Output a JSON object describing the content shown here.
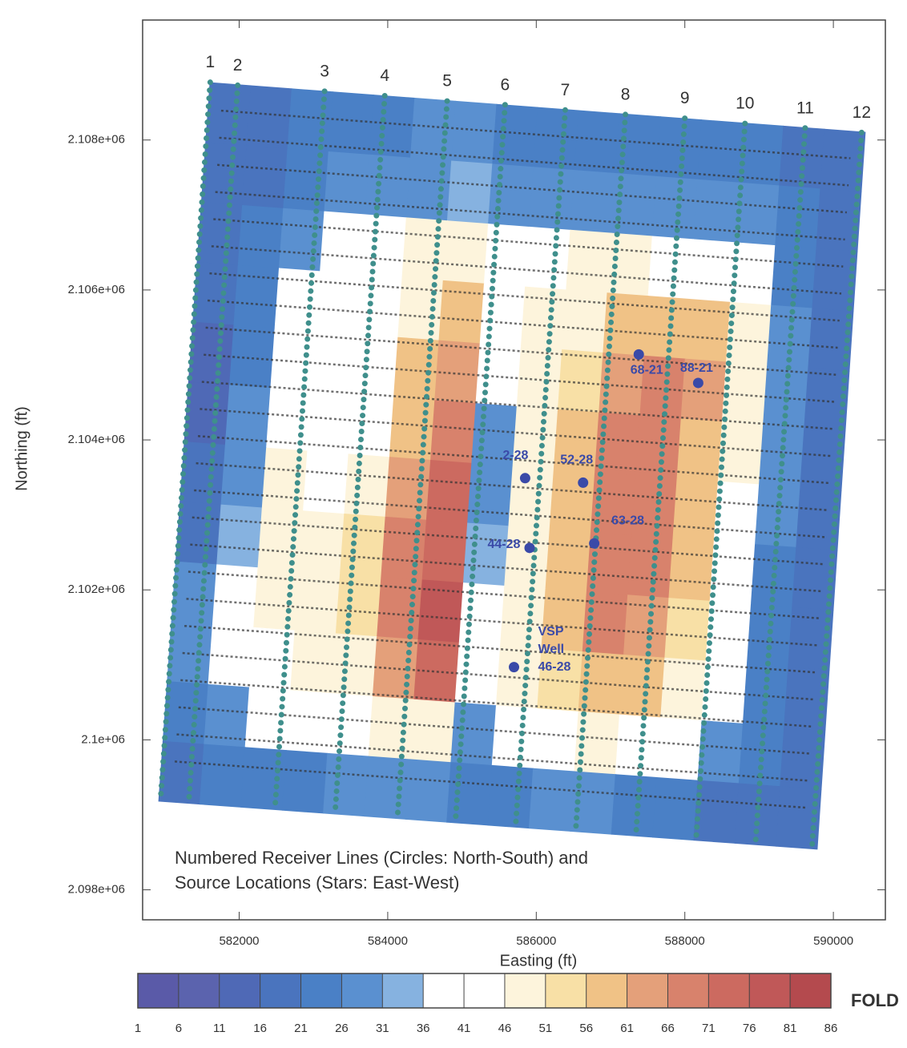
{
  "chart_data": {
    "type": "heatmap",
    "xlabel": "Easting (ft)",
    "ylabel": "Northing (ft)",
    "xlim": [
      580700,
      590700
    ],
    "ylim": [
      2097600,
      2109600
    ],
    "xticks": [
      582000,
      584000,
      586000,
      588000,
      590000
    ],
    "yticks": [
      {
        "value": 2098000,
        "label": "2.098e+06"
      },
      {
        "value": 2100000,
        "label": "2.1e+06"
      },
      {
        "value": 2102000,
        "label": "2.102e+06"
      },
      {
        "value": 2104000,
        "label": "2.104e+06"
      },
      {
        "value": 2106000,
        "label": "2.106e+06"
      },
      {
        "value": 2108000,
        "label": "2.108e+06"
      }
    ],
    "annotation": [
      "Numbered Receiver Lines (Circles: North-South) and",
      "Source Locations (Stars: East-West)"
    ],
    "line_color": "#3f8f8c",
    "receiver_lines": [
      {
        "label": "1",
        "north": [
          581610,
          2108770
        ],
        "south": [
          580940,
          2099180
        ]
      },
      {
        "label": "2",
        "north": [
          581980,
          2108730
        ],
        "south": [
          581320,
          2099150
        ]
      },
      {
        "label": "3",
        "north": [
          583150,
          2108650
        ],
        "south": [
          582480,
          2099060
        ]
      },
      {
        "label": "4",
        "north": [
          583960,
          2108590
        ],
        "south": [
          583290,
          2099010
        ]
      },
      {
        "label": "5",
        "north": [
          584800,
          2108520
        ],
        "south": [
          584130,
          2098950
        ]
      },
      {
        "label": "6",
        "north": [
          585580,
          2108470
        ],
        "south": [
          584910,
          2098890
        ]
      },
      {
        "label": "7",
        "north": [
          586390,
          2108400
        ],
        "south": [
          585720,
          2098830
        ]
      },
      {
        "label": "8",
        "north": [
          587200,
          2108340
        ],
        "south": [
          586530,
          2098780
        ]
      },
      {
        "label": "9",
        "north": [
          588000,
          2108290
        ],
        "south": [
          587340,
          2098710
        ]
      },
      {
        "label": "10",
        "north": [
          588810,
          2108220
        ],
        "south": [
          588150,
          2098660
        ]
      },
      {
        "label": "11",
        "north": [
          589620,
          2108160
        ],
        "south": [
          588950,
          2098600
        ]
      },
      {
        "label": "12",
        "north": [
          590380,
          2108100
        ],
        "south": [
          589710,
          2098540
        ]
      }
    ],
    "well_color": "#3a4aa8",
    "wells": [
      {
        "label_lines": [
          "68-21"
        ],
        "x": 587380,
        "y": 2105140
      },
      {
        "label_lines": [
          "88-21"
        ],
        "x": 588180,
        "y": 2104760
      },
      {
        "label_lines": [
          "2-28"
        ],
        "x": 585850,
        "y": 2103490
      },
      {
        "label_lines": [
          "52-28"
        ],
        "x": 586630,
        "y": 2103430
      },
      {
        "label_lines": [
          "63-28"
        ],
        "x": 586780,
        "y": 2102620
      },
      {
        "label_lines": [
          "44-28"
        ],
        "x": 585910,
        "y": 2102560
      },
      {
        "label_lines": [
          "VSP",
          "Well",
          "46-28"
        ],
        "x": 585700,
        "y": 2100970
      }
    ],
    "fold": [
      [
        18,
        20,
        22,
        24,
        25,
        26,
        26,
        25,
        24,
        24,
        24,
        24,
        23,
        22,
        20,
        18
      ],
      [
        18,
        20,
        22,
        26,
        28,
        30,
        34,
        30,
        26,
        28,
        28,
        28,
        26,
        26,
        22,
        18
      ],
      [
        16,
        22,
        26,
        40,
        38,
        46,
        50,
        44,
        42,
        46,
        46,
        44,
        44,
        42,
        24,
        18
      ],
      [
        16,
        24,
        36,
        44,
        42,
        50,
        56,
        44,
        46,
        50,
        56,
        58,
        56,
        46,
        26,
        18
      ],
      [
        14,
        24,
        40,
        44,
        44,
        56,
        64,
        40,
        48,
        54,
        64,
        66,
        62,
        46,
        30,
        20
      ],
      [
        14,
        26,
        40,
        36,
        44,
        60,
        68,
        30,
        48,
        56,
        66,
        66,
        60,
        46,
        28,
        20
      ],
      [
        16,
        30,
        46,
        40,
        50,
        64,
        72,
        30,
        48,
        58,
        68,
        66,
        58,
        44,
        26,
        20
      ],
      [
        20,
        34,
        50,
        46,
        54,
        66,
        74,
        34,
        46,
        56,
        68,
        66,
        56,
        44,
        24,
        20
      ],
      [
        28,
        40,
        48,
        50,
        54,
        66,
        76,
        40,
        48,
        56,
        68,
        64,
        52,
        40,
        24,
        20
      ],
      [
        26,
        40,
        44,
        46,
        50,
        62,
        72,
        42,
        46,
        52,
        60,
        56,
        48,
        36,
        24,
        20
      ],
      [
        22,
        30,
        36,
        38,
        44,
        48,
        46,
        30,
        36,
        44,
        46,
        44,
        36,
        26,
        22,
        20
      ],
      [
        18,
        22,
        24,
        24,
        26,
        28,
        26,
        24,
        24,
        26,
        26,
        24,
        22,
        20,
        20,
        18
      ]
    ],
    "colorbar": {
      "title": "FOLD",
      "ticks": [
        1,
        6,
        11,
        16,
        21,
        26,
        31,
        36,
        41,
        46,
        51,
        56,
        61,
        66,
        71,
        76,
        81,
        86
      ],
      "colors": [
        "#5a5aa8",
        "#5b63ae",
        "#4f69b6",
        "#4a74be",
        "#4a80c6",
        "#5a90d0",
        "#86b2e0",
        "#ffffff",
        "#ffffff",
        "#fdf4dc",
        "#f8e0a6",
        "#f0c286",
        "#e4a07a",
        "#d8826c",
        "#cc6a60",
        "#c05858",
        "#b44a4e"
      ]
    }
  }
}
